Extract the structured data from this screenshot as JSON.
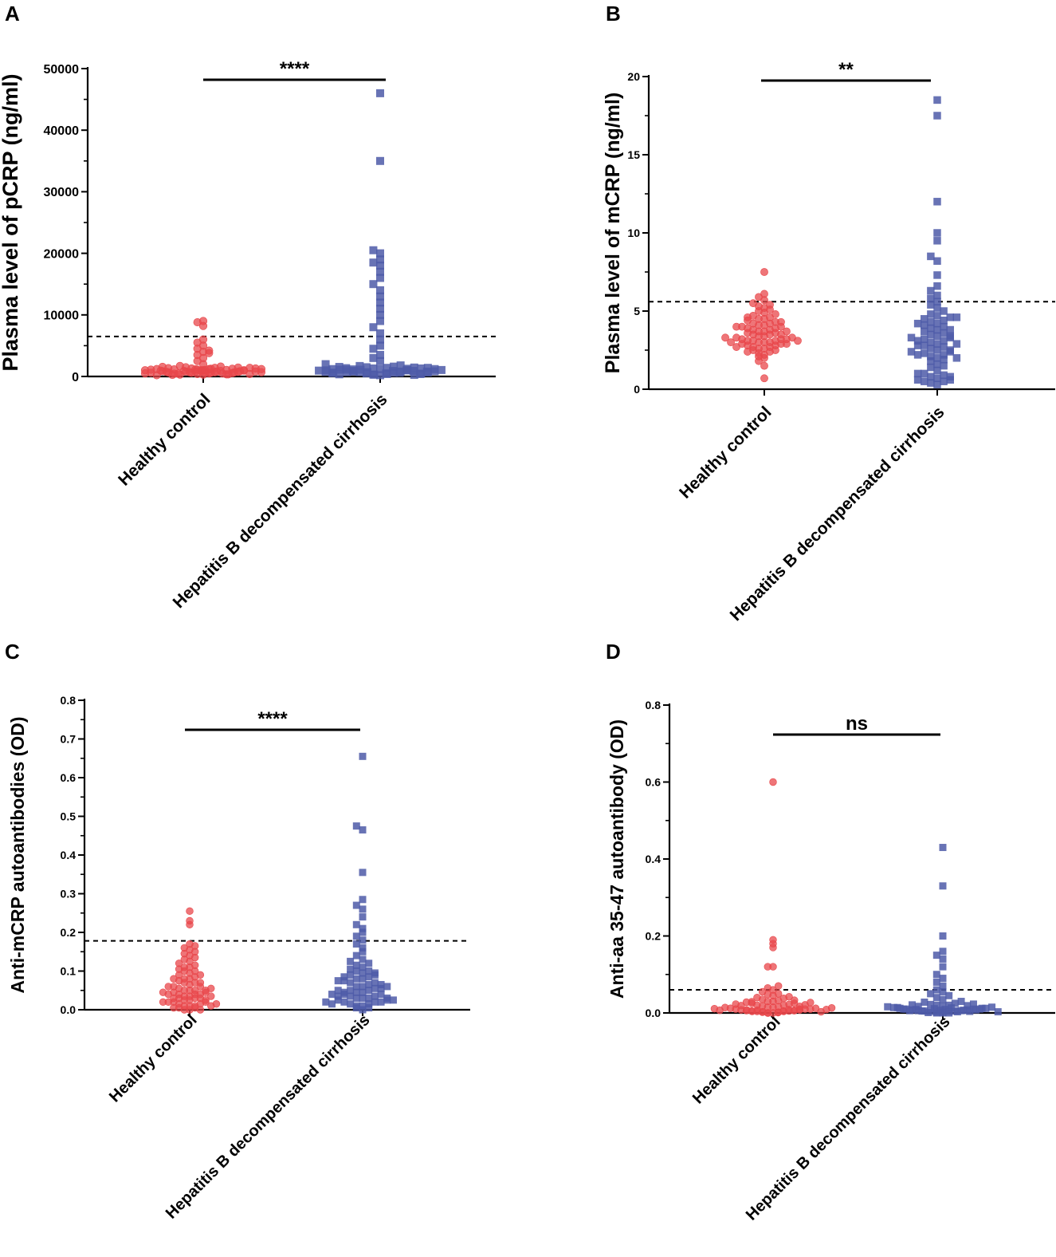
{
  "colors": {
    "healthy": "#e8474b",
    "cirrhosis": "#4d5aa8",
    "axis": "#000000"
  },
  "chart_data": [
    {
      "panel": "A",
      "type": "scatter",
      "ylabel": "Plasma level of pCRP (ng/ml)",
      "categories": [
        "Healthy control",
        "Hepatitis B decompensated cirrhosis"
      ],
      "ylim": [
        0,
        50000
      ],
      "yticks": [
        "0",
        "10000",
        "20000",
        "30000",
        "40000",
        "50000"
      ],
      "significance": "****",
      "cutoff": 6500,
      "series": [
        {
          "name": "Healthy control",
          "marker": "circle",
          "values": [
            300,
            400,
            500,
            600,
            700,
            800,
            900,
            1000,
            1100,
            1200,
            1300,
            1400,
            1500,
            1600,
            1700,
            300,
            350,
            450,
            550,
            650,
            750,
            850,
            950,
            1050,
            1150,
            1250,
            1350,
            1450,
            1550,
            200,
            400,
            600,
            800,
            1000,
            1200,
            1400,
            500,
            700,
            900,
            1100,
            1300,
            600,
            800,
            1000,
            1200,
            2000,
            2500,
            3000,
            3500,
            4000,
            4500,
            5000,
            5500,
            6000,
            3800,
            4200,
            8200,
            8800,
            9000,
            600,
            700,
            800,
            900,
            1000,
            500,
            450,
            350,
            250,
            650,
            750,
            850,
            950,
            1050,
            1150,
            1250
          ]
        },
        {
          "name": "Hepatitis B decompensated cirrhosis",
          "marker": "square",
          "values": [
            200,
            300,
            400,
            500,
            600,
            700,
            800,
            900,
            1000,
            1100,
            1200,
            1300,
            1400,
            1500,
            1600,
            1700,
            1800,
            250,
            350,
            450,
            550,
            650,
            750,
            850,
            950,
            1050,
            1150,
            1250,
            1350,
            1450,
            1550,
            300,
            500,
            700,
            900,
            1100,
            1300,
            600,
            800,
            1000,
            1200,
            1400,
            2000,
            2500,
            3000,
            3500,
            4500,
            5000,
            6000,
            7000,
            8000,
            9000,
            10000,
            11000,
            12000,
            13000,
            14000,
            15000,
            16000,
            17000,
            18000,
            18500,
            19000,
            20000,
            20500,
            35000,
            46000,
            700,
            900,
            1100,
            400,
            600,
            800,
            1000,
            1200
          ]
        }
      ]
    },
    {
      "panel": "B",
      "type": "scatter",
      "ylabel": "Plasma level of mCRP (ng/ml)",
      "categories": [
        "Healthy control",
        "Hepatitis B decompensated cirrhosis"
      ],
      "ylim": [
        0,
        20
      ],
      "yticks": [
        "0",
        "5",
        "10",
        "15",
        "20"
      ],
      "significance": "**",
      "cutoff": 5.6,
      "series": [
        {
          "name": "Healthy control",
          "marker": "circle",
          "values": [
            0.7,
            1.5,
            1.8,
            2.0,
            2.1,
            2.2,
            2.3,
            2.4,
            2.5,
            2.5,
            2.6,
            2.6,
            2.7,
            2.7,
            2.8,
            2.8,
            2.9,
            2.9,
            3.0,
            3.0,
            3.0,
            3.1,
            3.1,
            3.1,
            3.2,
            3.2,
            3.2,
            3.3,
            3.3,
            3.4,
            3.4,
            3.5,
            3.5,
            3.6,
            3.6,
            3.7,
            3.7,
            3.8,
            3.8,
            3.9,
            3.9,
            4.0,
            4.0,
            4.1,
            4.1,
            4.2,
            4.2,
            4.3,
            4.4,
            4.5,
            4.5,
            4.6,
            4.7,
            4.8,
            4.9,
            5.0,
            5.1,
            5.2,
            5.3,
            5.4,
            5.5,
            5.7,
            5.9,
            6.1,
            7.5,
            2.9,
            3.0,
            3.1,
            3.3,
            3.5,
            3.7,
            4.0,
            4.3,
            4.6,
            2.4,
            2.7
          ]
        },
        {
          "name": "Hepatitis B decompensated cirrhosis",
          "marker": "square",
          "values": [
            0.3,
            0.4,
            0.5,
            0.5,
            0.6,
            0.7,
            0.8,
            0.9,
            1.0,
            1.2,
            1.4,
            1.6,
            1.8,
            2.0,
            2.1,
            2.2,
            2.3,
            2.4,
            2.5,
            2.6,
            2.7,
            2.8,
            2.9,
            3.0,
            3.1,
            3.2,
            3.3,
            3.4,
            3.5,
            3.6,
            3.7,
            3.8,
            3.9,
            4.0,
            4.1,
            4.2,
            4.3,
            4.4,
            4.5,
            4.6,
            4.7,
            4.8,
            5.0,
            5.2,
            5.4,
            5.6,
            5.8,
            6.0,
            6.3,
            6.6,
            7.3,
            8.2,
            8.5,
            9.5,
            10.0,
            12.0,
            17.5,
            18.5,
            0.6,
            0.8,
            1.0,
            2.2,
            2.5,
            2.8,
            3.1,
            3.4,
            3.8,
            4.2,
            4.6,
            2.0,
            2.4,
            2.9,
            3.3,
            1.5,
            1.9
          ]
        }
      ]
    },
    {
      "panel": "C",
      "type": "scatter",
      "ylabel": "Anti-mCRP autoantibodies (OD)",
      "categories": [
        "Healthy control",
        "Hepatitis B decompensated cirrhosis"
      ],
      "ylim": [
        0,
        0.8
      ],
      "yticks": [
        "0.0",
        "0.1",
        "0.2",
        "0.3",
        "0.4",
        "0.5",
        "0.6",
        "0.7",
        "0.8"
      ],
      "significance": "****",
      "cutoff": 0.178,
      "series": [
        {
          "name": "Healthy control",
          "marker": "circle",
          "values": [
            0.0,
            0.0,
            0.005,
            0.005,
            0.01,
            0.01,
            0.01,
            0.015,
            0.015,
            0.02,
            0.02,
            0.02,
            0.025,
            0.025,
            0.03,
            0.03,
            0.03,
            0.035,
            0.035,
            0.04,
            0.04,
            0.04,
            0.045,
            0.045,
            0.05,
            0.05,
            0.05,
            0.055,
            0.06,
            0.06,
            0.065,
            0.07,
            0.07,
            0.075,
            0.08,
            0.08,
            0.085,
            0.09,
            0.09,
            0.095,
            0.1,
            0.1,
            0.105,
            0.11,
            0.11,
            0.115,
            0.12,
            0.125,
            0.13,
            0.135,
            0.14,
            0.145,
            0.15,
            0.155,
            0.16,
            0.165,
            0.17,
            0.22,
            0.23,
            0.255,
            0.0,
            0.005,
            0.01,
            0.02,
            0.03,
            0.04,
            0.05,
            0.06,
            0.07,
            0.08,
            0.015,
            0.025,
            0.035,
            0.045,
            0.055
          ]
        },
        {
          "name": "Hepatitis B decompensated cirrhosis",
          "marker": "square",
          "values": [
            0.0,
            0.005,
            0.01,
            0.01,
            0.015,
            0.015,
            0.02,
            0.02,
            0.02,
            0.025,
            0.025,
            0.03,
            0.03,
            0.03,
            0.035,
            0.035,
            0.04,
            0.04,
            0.045,
            0.045,
            0.05,
            0.05,
            0.055,
            0.06,
            0.06,
            0.065,
            0.07,
            0.07,
            0.075,
            0.08,
            0.08,
            0.085,
            0.09,
            0.09,
            0.095,
            0.1,
            0.1,
            0.105,
            0.11,
            0.115,
            0.12,
            0.125,
            0.13,
            0.14,
            0.15,
            0.16,
            0.17,
            0.18,
            0.19,
            0.2,
            0.21,
            0.22,
            0.24,
            0.26,
            0.27,
            0.285,
            0.355,
            0.465,
            0.475,
            0.655,
            0.005,
            0.015,
            0.025,
            0.035,
            0.045,
            0.055,
            0.065,
            0.075,
            0.085,
            0.095,
            0.02,
            0.03,
            0.04,
            0.05,
            0.06
          ]
        }
      ]
    },
    {
      "panel": "D",
      "type": "scatter",
      "ylabel": "Anti-aa 35-47 autoantibody (OD)",
      "categories": [
        "Healthy control",
        "Hepatitis B decompensated cirrhosis"
      ],
      "ylim": [
        0,
        0.8
      ],
      "yticks": [
        "0.0",
        "0.2",
        "0.4",
        "0.6",
        "0.8"
      ],
      "significance": "ns",
      "cutoff": 0.06,
      "series": [
        {
          "name": "Healthy control",
          "marker": "circle",
          "values": [
            0.0,
            0.0,
            0.002,
            0.002,
            0.004,
            0.004,
            0.005,
            0.005,
            0.006,
            0.006,
            0.008,
            0.008,
            0.01,
            0.01,
            0.01,
            0.012,
            0.012,
            0.014,
            0.015,
            0.015,
            0.016,
            0.018,
            0.02,
            0.02,
            0.022,
            0.025,
            0.025,
            0.028,
            0.03,
            0.03,
            0.032,
            0.035,
            0.038,
            0.04,
            0.042,
            0.045,
            0.048,
            0.05,
            0.055,
            0.06,
            0.065,
            0.07,
            0.12,
            0.12,
            0.17,
            0.18,
            0.19,
            0.6,
            0.003,
            0.007,
            0.009,
            0.011,
            0.013,
            0.017,
            0.019,
            0.021,
            0.023,
            0.027,
            0.029,
            0.033,
            0.0,
            0.001,
            0.003,
            0.005,
            0.007,
            0.009,
            0.004,
            0.006,
            0.008,
            0.01
          ]
        },
        {
          "name": "Hepatitis B decompensated cirrhosis",
          "marker": "square",
          "values": [
            0.0,
            0.0,
            0.002,
            0.002,
            0.004,
            0.004,
            0.005,
            0.005,
            0.006,
            0.006,
            0.008,
            0.008,
            0.01,
            0.01,
            0.01,
            0.012,
            0.012,
            0.014,
            0.015,
            0.016,
            0.018,
            0.02,
            0.02,
            0.022,
            0.025,
            0.028,
            0.03,
            0.035,
            0.04,
            0.045,
            0.05,
            0.055,
            0.06,
            0.07,
            0.08,
            0.09,
            0.1,
            0.12,
            0.14,
            0.15,
            0.16,
            0.2,
            0.33,
            0.43,
            0.003,
            0.007,
            0.009,
            0.011,
            0.013,
            0.017,
            0.019,
            0.021,
            0.023,
            0.0,
            0.001,
            0.003,
            0.005,
            0.007,
            0.009,
            0.004,
            0.006,
            0.008,
            0.01,
            0.012,
            0.014
          ]
        }
      ]
    }
  ]
}
